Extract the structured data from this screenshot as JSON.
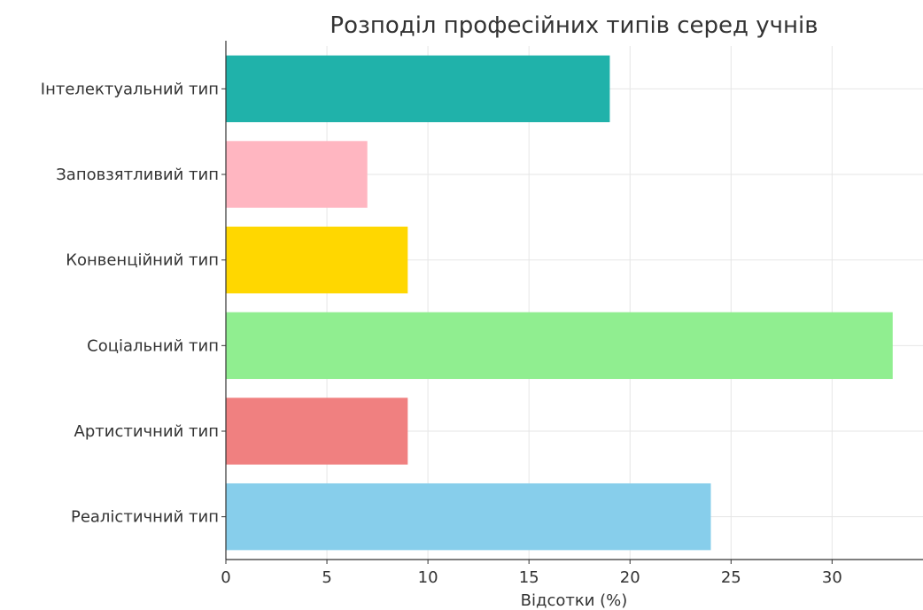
{
  "chart_data": {
    "type": "bar",
    "orientation": "horizontal",
    "title": "Розподіл професійних типів серед учнів",
    "xlabel": "Відсотки (%)",
    "ylabel": "",
    "xlim": [
      0,
      34.5
    ],
    "xticks": [
      0,
      5,
      10,
      15,
      20,
      25,
      30
    ],
    "grid": true,
    "categories": [
      "Реалістичний тип",
      "Артистичний тип",
      "Соціальний тип",
      "Конвенційний тип",
      "Заповзятливий тип",
      "Інтелектуальний тип"
    ],
    "values": [
      24,
      9,
      33,
      9,
      7,
      19
    ],
    "colors": [
      "#87ceeb",
      "#f08080",
      "#90ee90",
      "#ffd700",
      "#ffb6c1",
      "#20b2aa"
    ]
  }
}
